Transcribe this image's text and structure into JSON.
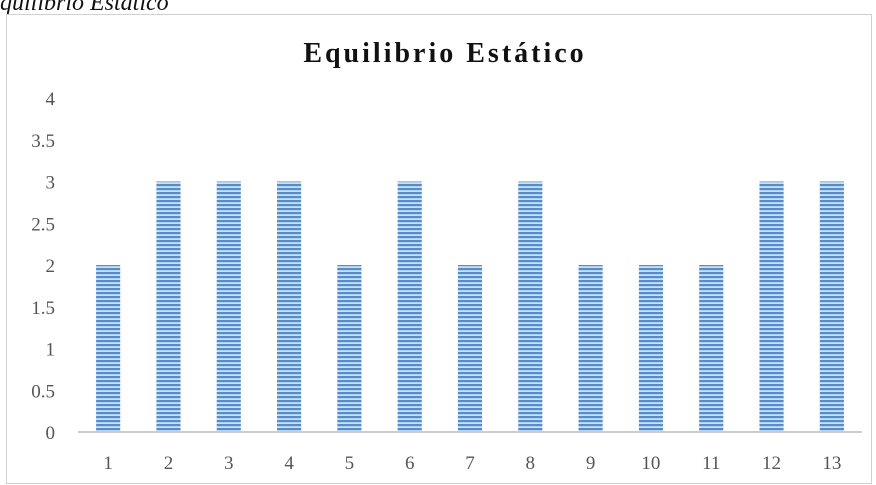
{
  "caption": "quilibrio Estático",
  "chart_data": {
    "type": "bar",
    "title": "Equilibrio Estático",
    "xlabel": "",
    "ylabel": "",
    "categories": [
      "1",
      "2",
      "3",
      "4",
      "5",
      "6",
      "7",
      "8",
      "9",
      "10",
      "11",
      "12",
      "13"
    ],
    "values": [
      2,
      3,
      3,
      3,
      2,
      3,
      2,
      3,
      2,
      2,
      2,
      3,
      3
    ],
    "ylim": [
      0,
      4
    ],
    "yticks": [
      "0",
      "0.5",
      "1",
      "1.5",
      "2",
      "2.5",
      "3",
      "3.5",
      "4"
    ],
    "grid": false,
    "legend": "none",
    "bar_color": "#5b9bd5",
    "bar_pattern": "horizontal-stripes"
  }
}
